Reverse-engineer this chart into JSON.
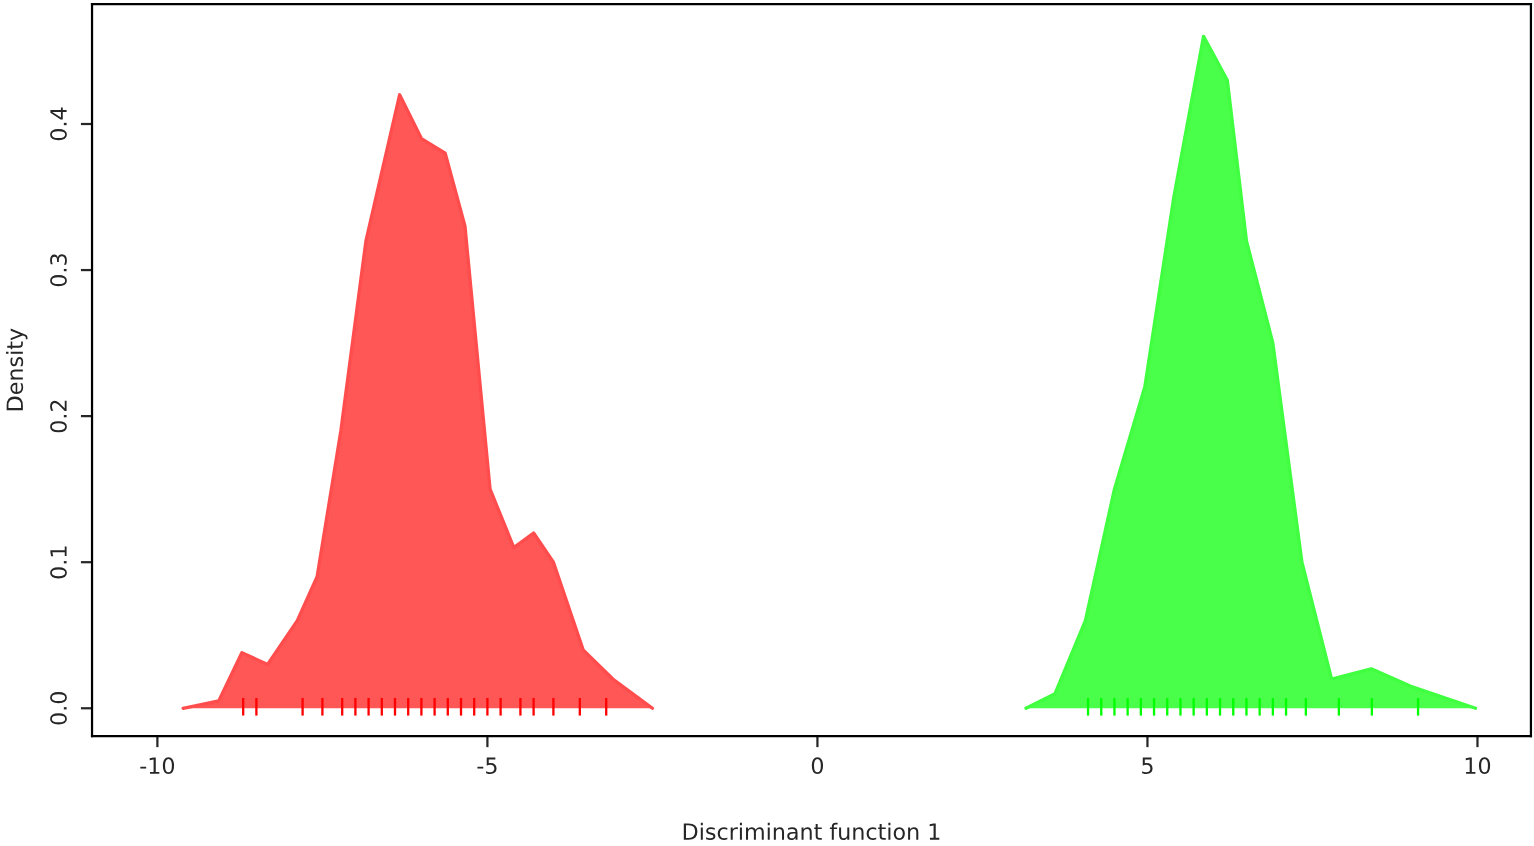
{
  "chart_data": {
    "type": "area",
    "xlabel": "Discriminant function 1",
    "ylabel": "Density",
    "xlim": [
      -10.99,
      10.81
    ],
    "ylim": [
      -0.019,
      0.482
    ],
    "xticks": [
      -10,
      -5,
      0,
      5,
      10
    ],
    "yticks": [
      {
        "value": 0,
        "label": "0.0"
      },
      {
        "value": 0.1,
        "label": "0.1"
      },
      {
        "value": 0.2,
        "label": "0.2"
      },
      {
        "value": 0.3,
        "label": "0.3"
      },
      {
        "value": 0.4,
        "label": "0.4"
      }
    ],
    "grid": false,
    "legend": false,
    "series": [
      {
        "color": "#ff4d4d",
        "x": [
          -9.61,
          -9.07,
          -8.72,
          -8.33,
          -7.88,
          -7.58,
          -7.22,
          -6.84,
          -6.33,
          -6.0,
          -5.64,
          -5.34,
          -4.96,
          -4.6,
          -4.3,
          -4.0,
          -3.55,
          -3.1,
          -2.5
        ],
        "values": [
          0,
          0.005,
          0.038,
          0.03,
          0.06,
          0.09,
          0.19,
          0.32,
          0.42,
          0.39,
          0.38,
          0.33,
          0.15,
          0.11,
          0.12,
          0.1,
          0.04,
          0.02,
          0
        ]
      },
      {
        "color": "#40ff40",
        "x": [
          3.16,
          3.6,
          4.06,
          4.5,
          4.96,
          5.4,
          5.85,
          6.21,
          6.5,
          6.9,
          7.34,
          7.79,
          8.39,
          8.99,
          9.97
        ],
        "values": [
          0,
          0.01,
          0.06,
          0.15,
          0.22,
          0.35,
          0.46,
          0.43,
          0.32,
          0.25,
          0.1,
          0.02,
          0.027,
          0.015,
          0
        ]
      },
      {
        "type": "bar",
        "color": "#ff0000",
        "x": [
          -8.7,
          -8.5,
          -7.8,
          -7.5,
          -7.2,
          -7.0,
          -6.8,
          -6.6,
          -6.4,
          -6.2,
          -6.0,
          -5.8,
          -5.6,
          -5.4,
          -5.2,
          -5.0,
          -4.8,
          -4.5,
          -4.3,
          -4.0,
          -3.6,
          -3.2
        ],
        "base": [
          -0.005,
          -0.005,
          -0.005,
          -0.005,
          -0.005,
          -0.005,
          -0.005,
          -0.005,
          -0.005,
          -0.005,
          -0.005,
          -0.005,
          -0.005,
          -0.005,
          -0.005,
          -0.005,
          -0.005,
          -0.005,
          -0.005,
          -0.005,
          -0.005,
          -0.005
        ],
        "values": [
          0.012,
          0.012,
          0.012,
          0.012,
          0.012,
          0.012,
          0.012,
          0.012,
          0.012,
          0.012,
          0.012,
          0.012,
          0.012,
          0.012,
          0.012,
          0.012,
          0.012,
          0.012,
          0.012,
          0.012,
          0.012,
          0.012
        ]
      },
      {
        "type": "bar",
        "color": "#00ff00",
        "x": [
          4.1,
          4.3,
          4.5,
          4.7,
          4.9,
          5.1,
          5.3,
          5.5,
          5.7,
          5.9,
          6.1,
          6.3,
          6.5,
          6.7,
          6.9,
          7.1,
          7.4,
          7.9,
          8.4,
          9.1
        ],
        "base": [
          -0.005,
          -0.005,
          -0.005,
          -0.005,
          -0.005,
          -0.005,
          -0.005,
          -0.005,
          -0.005,
          -0.005,
          -0.005,
          -0.005,
          -0.005,
          -0.005,
          -0.005,
          -0.005,
          -0.005,
          -0.005,
          -0.005,
          -0.005
        ],
        "values": [
          0.012,
          0.012,
          0.012,
          0.012,
          0.012,
          0.012,
          0.012,
          0.012,
          0.012,
          0.012,
          0.012,
          0.012,
          0.012,
          0.012,
          0.012,
          0.012,
          0.012,
          0.012,
          0.012,
          0.012
        ]
      }
    ]
  }
}
